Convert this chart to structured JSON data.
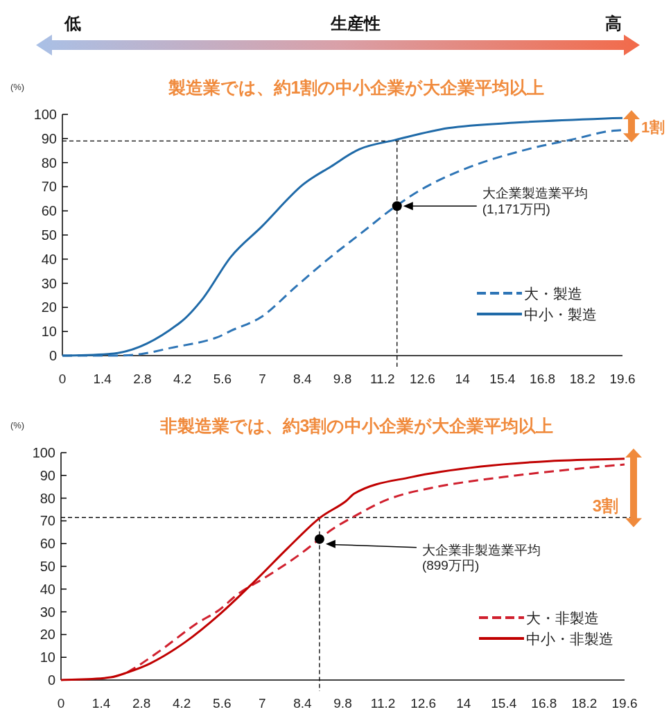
{
  "chart_data": [
    {
      "type": "line",
      "title": "製造業では、約1割の中小企業が大企業平均以上",
      "ylabel": "(%)",
      "xlim": [
        0,
        19.6
      ],
      "xticks": [
        0,
        1.4,
        2.8,
        4.2,
        5.6,
        7,
        8.4,
        9.8,
        11.2,
        12.6,
        14,
        15.4,
        16.8,
        18.2,
        19.6
      ],
      "ylim": [
        0,
        100
      ],
      "yticks": [
        0,
        10,
        20,
        30,
        40,
        50,
        60,
        70,
        80,
        90,
        100
      ],
      "grid": false,
      "legend": "bottom right",
      "marker": "none",
      "series": [
        {
          "name": "大・製造",
          "color": "#2e75b6",
          "line_style": "dashed",
          "x": [
            0,
            1.4,
            2.5,
            3.8,
            5.4,
            5.9,
            6.97,
            8.18,
            9.4,
            10.44,
            11.65,
            12.7,
            14.3,
            16.3,
            17.96,
            19,
            19.6
          ],
          "values": [
            0,
            0,
            0.3,
            3.2,
            7.5,
            10.3,
            16.1,
            28.7,
            41,
            50.6,
            61.8,
            69.8,
            78.4,
            85.6,
            89.9,
            92.8,
            93.5
          ]
        },
        {
          "name": "中小・製造",
          "color": "#1f6aa8",
          "line_style": "solid",
          "x": [
            0,
            1.94,
            4.13,
            4.93,
            5.9,
            6.97,
            8.4,
            9.4,
            10.4,
            11.65,
            13.5,
            15.9,
            19,
            19.6
          ],
          "values": [
            0,
            1.1,
            13.8,
            23.9,
            41,
            53.4,
            70.7,
            78.4,
            85.6,
            89.4,
            94.3,
            96.6,
            98.3,
            98.5
          ]
        },
        {
          "type": "scatter",
          "color": "#000000",
          "marker": "circle",
          "x": [
            11.71
          ],
          "values": [
            62
          ]
        }
      ],
      "ref_lines": [
        {
          "axis": "y",
          "value": 89,
          "color": "#000000",
          "line_style": "dashed"
        },
        {
          "axis": "x",
          "value": 11.71,
          "color": "#000000",
          "line_style": "dashed"
        }
      ],
      "annotations": [
        "低",
        "生産性",
        "高",
        "1割",
        "大企業製造業平均\n(1,171万円)"
      ]
    },
    {
      "type": "line",
      "title": "非製造業では、約3割の中小企業が大企業平均以上",
      "ylabel": "(%)",
      "xlim": [
        0,
        19.6
      ],
      "xticks": [
        0,
        1.4,
        2.8,
        4.2,
        5.6,
        7,
        8.4,
        9.8,
        11.2,
        12.6,
        14,
        15.4,
        16.8,
        18.2,
        19.6
      ],
      "ylim": [
        0,
        100
      ],
      "yticks": [
        0,
        10,
        20,
        30,
        40,
        50,
        60,
        70,
        80,
        90,
        100
      ],
      "grid": false,
      "legend": "bottom right",
      "marker": "none",
      "series": [
        {
          "name": "大・非製造",
          "color": "#d0202e",
          "line_style": "dashed",
          "x": [
            2.3,
            2.7,
            3.5,
            4.7,
            5.5,
            6.15,
            7.1,
            8.3,
            8.99,
            9.4,
            10.2,
            11.4,
            13,
            15.4,
            17.8,
            19.6
          ],
          "values": [
            3.3,
            6.4,
            13.4,
            24.7,
            30.8,
            37.8,
            45.1,
            55.2,
            62,
            66,
            72,
            79.6,
            84.8,
            89.3,
            92.7,
            94.8
          ]
        },
        {
          "name": "中小・非製造",
          "color": "#c00000",
          "line_style": "solid",
          "x": [
            0,
            1.73,
            2.3,
            3.1,
            4.3,
            5.5,
            6.7,
            7.9,
            9,
            9.9,
            10.2,
            12.2,
            14.6,
            17,
            19.6
          ],
          "values": [
            0,
            1.2,
            3.3,
            7.3,
            16.5,
            28.7,
            43,
            58.2,
            71.3,
            78.6,
            82,
            89.3,
            93.9,
            96.3,
            97.3
          ]
        },
        {
          "type": "scatter",
          "color": "#000000",
          "marker": "circle",
          "x": [
            8.99
          ],
          "values": [
            62
          ]
        }
      ],
      "ref_lines": [
        {
          "axis": "y",
          "value": 71.5,
          "color": "#000000",
          "line_style": "dashed"
        },
        {
          "axis": "x",
          "value": 8.99,
          "color": "#000000",
          "line_style": "dashed"
        }
      ],
      "annotations": [
        "3割",
        "大企業非製造業平均\n(899万円)"
      ]
    }
  ]
}
